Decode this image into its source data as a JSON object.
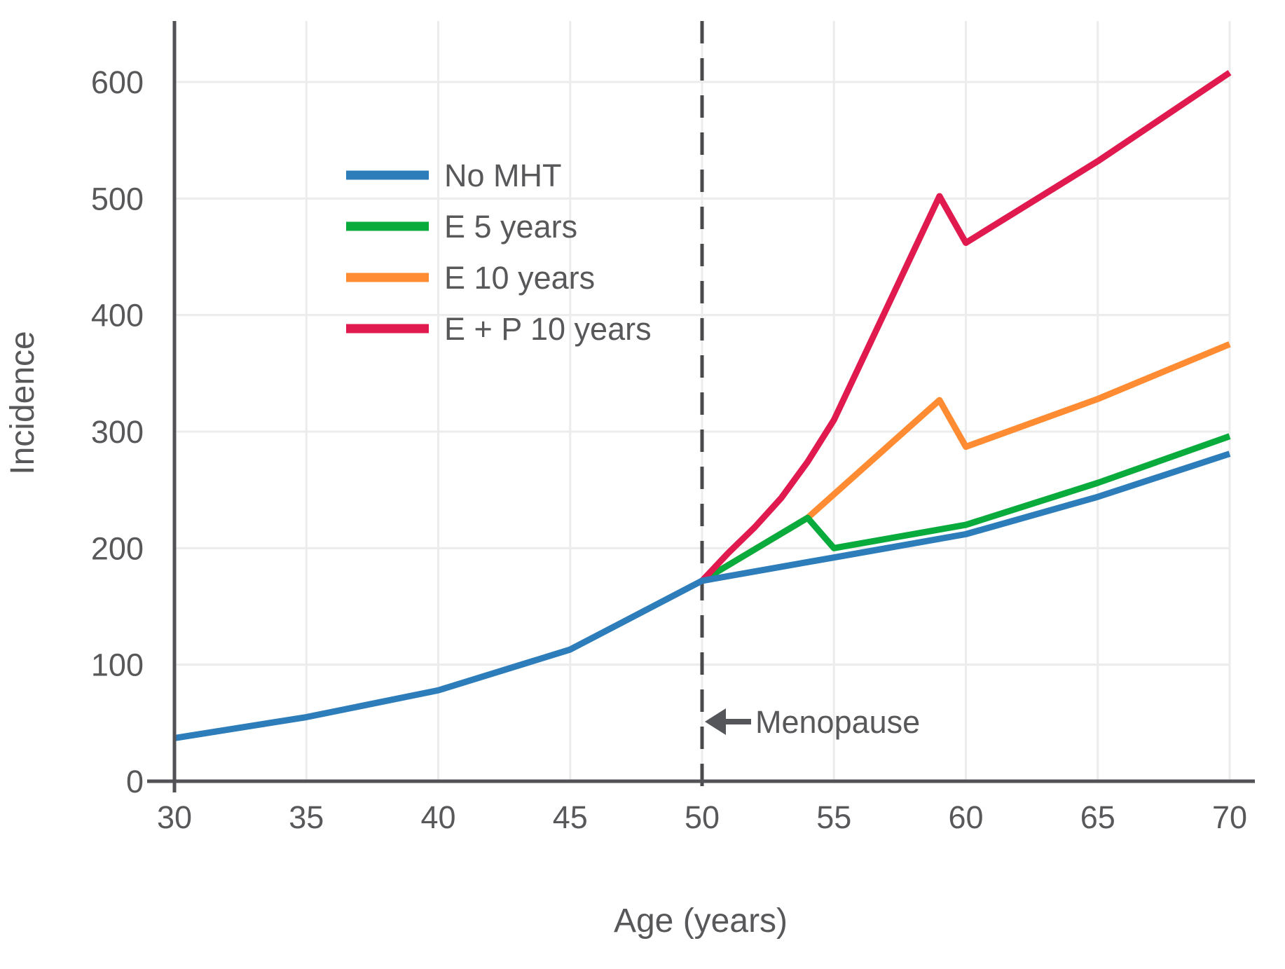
{
  "chart_data": {
    "type": "line",
    "title": "",
    "xlabel": "Age (years)",
    "ylabel": "Incidence",
    "xlim": [
      30,
      70
    ],
    "ylim": [
      0,
      652
    ],
    "xticks": [
      30,
      35,
      40,
      45,
      50,
      55,
      60,
      65,
      70
    ],
    "yticks": [
      0,
      100,
      200,
      300,
      400,
      500,
      600
    ],
    "grid": true,
    "legend_position": "upper-left-inside",
    "series": [
      {
        "name": "No MHT",
        "color": "#2d7dbb",
        "points": [
          [
            30,
            37
          ],
          [
            35,
            55
          ],
          [
            40,
            78
          ],
          [
            45,
            113
          ],
          [
            50,
            172
          ],
          [
            55,
            192
          ],
          [
            60,
            212
          ],
          [
            65,
            244
          ],
          [
            70,
            281
          ]
        ]
      },
      {
        "name": "E 5 years",
        "color": "#09ab3c",
        "points": [
          [
            50,
            172
          ],
          [
            54,
            226
          ],
          [
            55,
            200
          ],
          [
            60,
            220
          ],
          [
            65,
            256
          ],
          [
            70,
            296
          ]
        ]
      },
      {
        "name": "E 10 years",
        "color": "#ff8c33",
        "points": [
          [
            50,
            172
          ],
          [
            54,
            226
          ],
          [
            59,
            327
          ],
          [
            60,
            287
          ],
          [
            65,
            328
          ],
          [
            70,
            375
          ]
        ]
      },
      {
        "name": "E + P 10 years",
        "color": "#e01a4e",
        "points": [
          [
            50,
            172
          ],
          [
            51,
            196
          ],
          [
            52,
            218
          ],
          [
            53,
            243
          ],
          [
            54,
            274
          ],
          [
            55,
            310
          ],
          [
            59,
            502
          ],
          [
            60,
            462
          ],
          [
            65,
            532
          ],
          [
            70,
            608
          ]
        ]
      }
    ],
    "reference_line": {
      "x": 50,
      "style": "dashed",
      "color": "#4a4a4d"
    },
    "annotation": {
      "label": "Menopause",
      "x": 50,
      "arrow_direction": "left"
    }
  },
  "style_colors": {
    "axis": "#525256",
    "grid": "#ececec",
    "text": "#58585b",
    "arrow": "#555659"
  }
}
